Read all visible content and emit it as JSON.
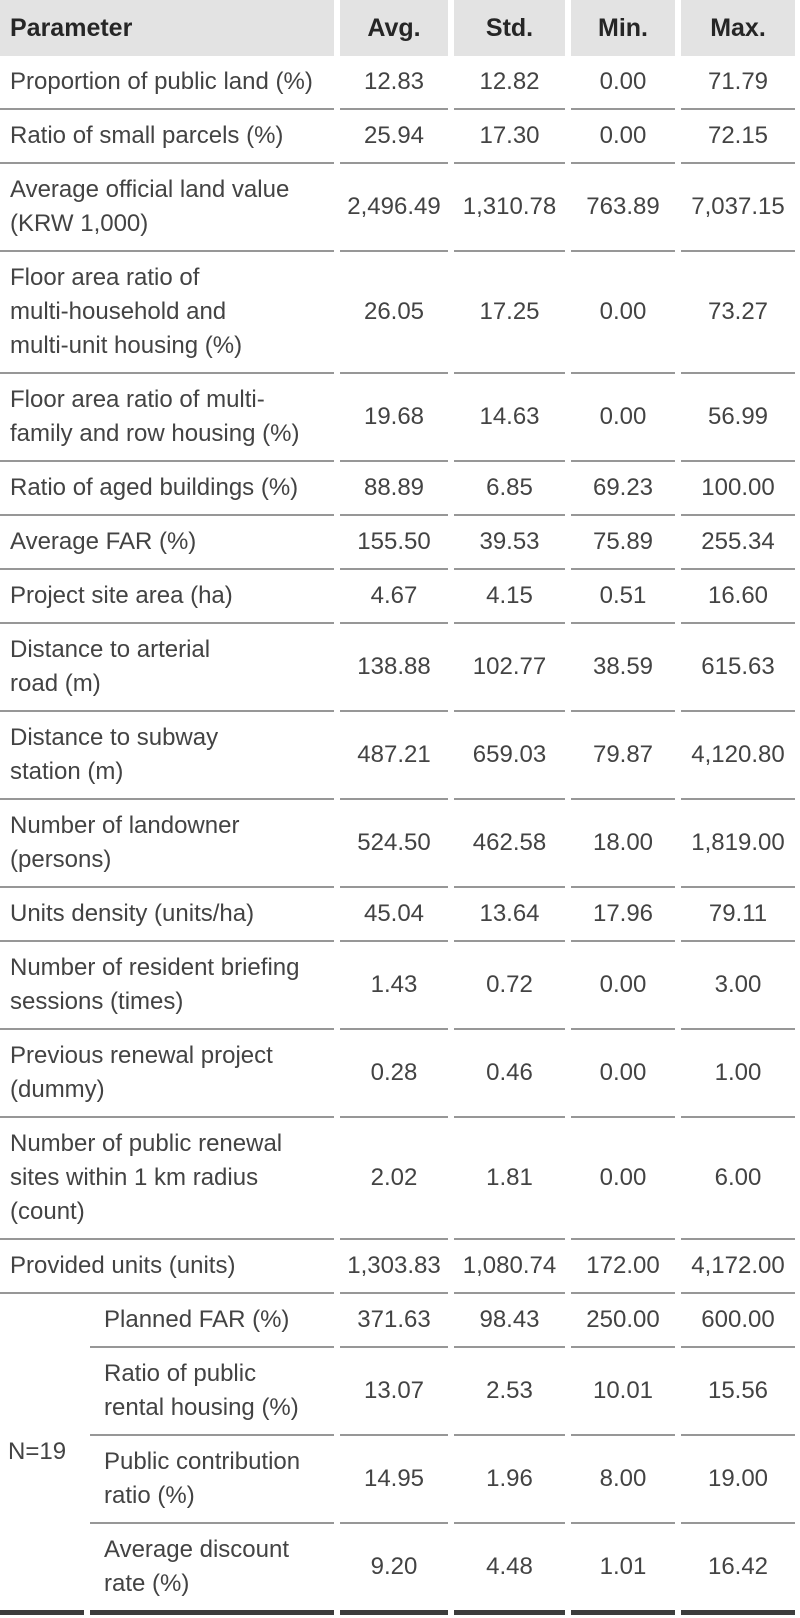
{
  "table": {
    "header": {
      "parameter": "Parameter",
      "avg": "Avg.",
      "std": "Std.",
      "min": "Min.",
      "max": "Max."
    },
    "rows": [
      {
        "label": "Proportion of public land (%)",
        "avg": "12.83",
        "std": "12.82",
        "min": "0.00",
        "max": "71.79"
      },
      {
        "label": "Ratio of small parcels (%)",
        "avg": "25.94",
        "std": "17.30",
        "min": "0.00",
        "max": "72.15"
      },
      {
        "label": "Average official land value\n(KRW 1,000)",
        "avg": "2,496.49",
        "std": "1,310.78",
        "min": "763.89",
        "max": "7,037.15"
      },
      {
        "label": "Floor area ratio of\nmulti-household and\nmulti-unit housing (%)",
        "avg": "26.05",
        "std": "17.25",
        "min": "0.00",
        "max": "73.27"
      },
      {
        "label": "Floor area ratio of multi-\nfamily and row housing (%)",
        "avg": "19.68",
        "std": "14.63",
        "min": "0.00",
        "max": "56.99"
      },
      {
        "label": "Ratio of aged buildings (%)",
        "avg": "88.89",
        "std": "6.85",
        "min": "69.23",
        "max": "100.00"
      },
      {
        "label": "Average FAR (%)",
        "avg": "155.50",
        "std": "39.53",
        "min": "75.89",
        "max": "255.34"
      },
      {
        "label": "Project site area (ha)",
        "avg": "4.67",
        "std": "4.15",
        "min": "0.51",
        "max": "16.60"
      },
      {
        "label": "Distance to arterial\nroad (m)",
        "avg": "138.88",
        "std": "102.77",
        "min": "38.59",
        "max": "615.63"
      },
      {
        "label": "Distance to subway\nstation (m)",
        "avg": "487.21",
        "std": "659.03",
        "min": "79.87",
        "max": "4,120.80"
      },
      {
        "label": "Number of landowner\n(persons)",
        "avg": "524.50",
        "std": "462.58",
        "min": "18.00",
        "max": "1,819.00"
      },
      {
        "label": "Units density (units/ha)",
        "avg": "45.04",
        "std": "13.64",
        "min": "17.96",
        "max": "79.11"
      },
      {
        "label": "Number of resident briefing\nsessions (times)",
        "avg": "1.43",
        "std": "0.72",
        "min": "0.00",
        "max": "3.00"
      },
      {
        "label": "Previous renewal project\n(dummy)",
        "avg": "0.28",
        "std": "0.46",
        "min": "0.00",
        "max": "1.00"
      },
      {
        "label": "Number of public renewal\nsites within 1 km radius\n(count)",
        "avg": "2.02",
        "std": "1.81",
        "min": "0.00",
        "max": "6.00"
      },
      {
        "label": "Provided units (units)",
        "avg": "1,303.83",
        "std": "1,080.74",
        "min": "172.00",
        "max": "4,172.00"
      }
    ],
    "group": {
      "label": "N=19",
      "rows": [
        {
          "label": "Planned FAR (%)",
          "avg": "371.63",
          "std": "98.43",
          "min": "250.00",
          "max": "600.00"
        },
        {
          "label": "Ratio of public\nrental housing (%)",
          "avg": "13.07",
          "std": "2.53",
          "min": "10.01",
          "max": "15.56"
        },
        {
          "label": "Public contribution\nratio (%)",
          "avg": "14.95",
          "std": "1.96",
          "min": "8.00",
          "max": "19.00"
        },
        {
          "label": "Average discount\nrate (%)",
          "avg": "9.20",
          "std": "4.48",
          "min": "1.01",
          "max": "16.42"
        }
      ]
    }
  }
}
